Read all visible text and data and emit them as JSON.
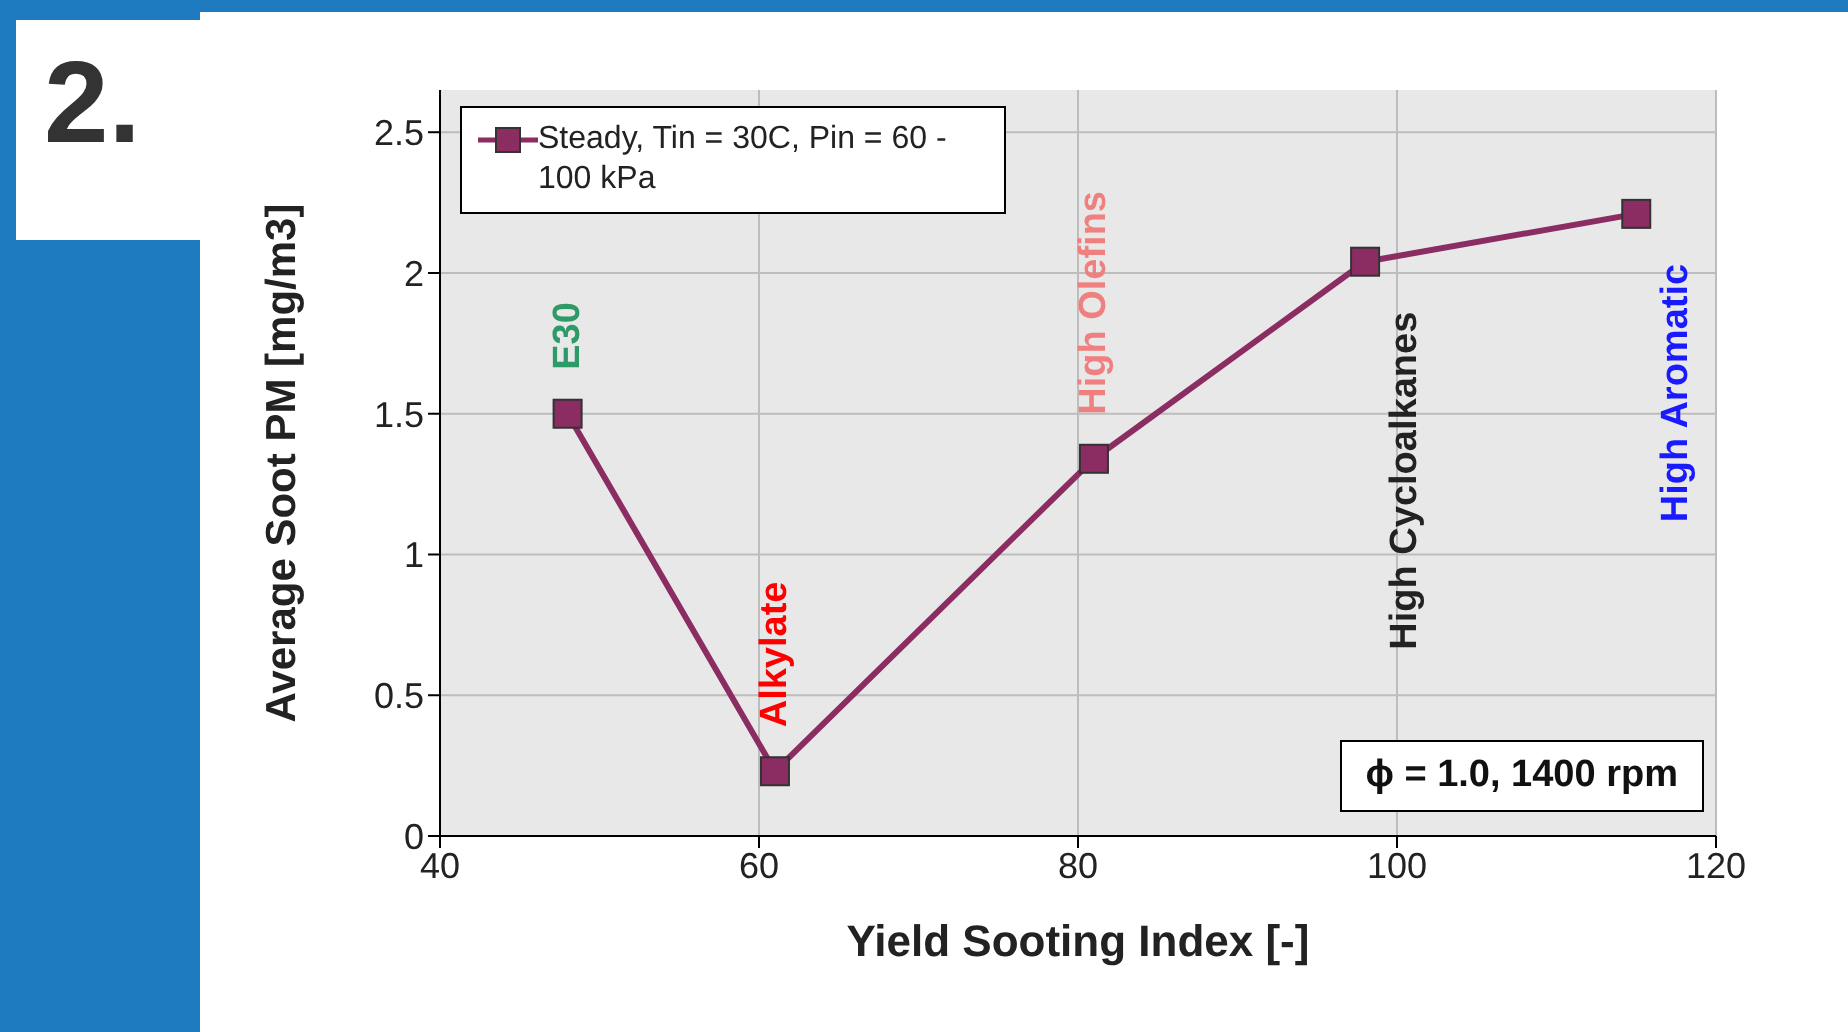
{
  "chart_data": {
    "type": "line",
    "xlabel": "Yield Sooting Index [-]",
    "ylabel": "Average Soot PM [mg/m3]",
    "x": [
      48,
      61,
      81,
      98,
      115
    ],
    "series": [
      {
        "name": "Steady, Tin = 30C, Pin = 60 - 100 kPa",
        "color": "#8b2d62",
        "values": [
          1.5,
          0.23,
          1.34,
          2.04,
          2.21
        ]
      }
    ],
    "xlim": [
      40,
      120
    ],
    "xticks": [
      40,
      60,
      80,
      100,
      120
    ],
    "ylim": [
      0,
      2.65
    ],
    "yticks": [
      0,
      0.5,
      1,
      1.5,
      2,
      2.5
    ],
    "grid": true,
    "legend": "top left",
    "marker": "square",
    "line_style": "solid",
    "annotations": [
      {
        "text": "E30",
        "x": 48,
        "y": 1.5
      },
      {
        "text": "Alkylate",
        "x": 61,
        "y": 0.23
      },
      {
        "text": "High Olefins",
        "x": 81,
        "y": 1.34
      },
      {
        "text": "High Cycloalkanes",
        "x": 98,
        "y": 2.04
      },
      {
        "text": "High Aromatic",
        "x": 115,
        "y": 2.21
      },
      "ϕ = 1.0, 1400 rpm",
      "2."
    ]
  }
}
